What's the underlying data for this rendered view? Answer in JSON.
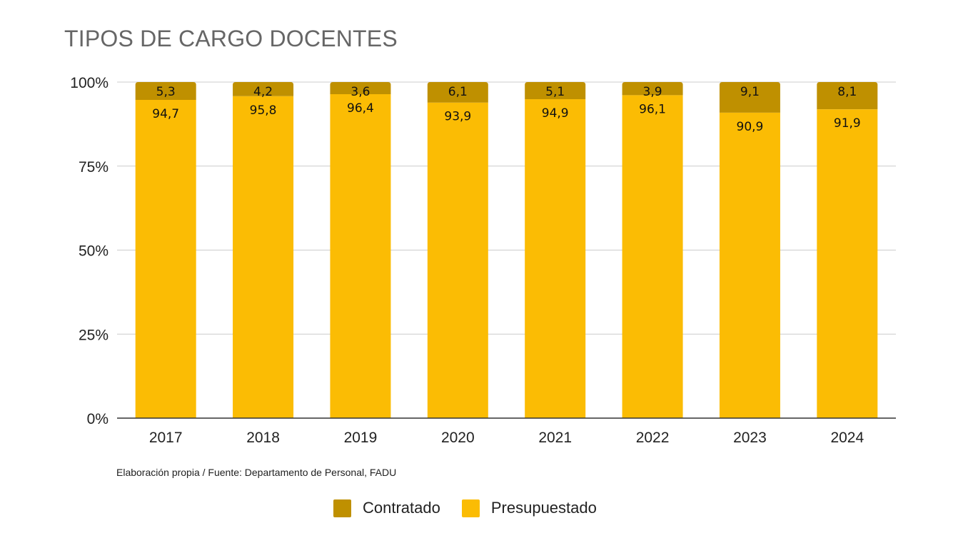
{
  "chart_data": {
    "type": "bar",
    "stacked": true,
    "title": "TIPOS DE CARGO DOCENTES",
    "categories": [
      "2017",
      "2018",
      "2019",
      "2020",
      "2021",
      "2022",
      "2023",
      "2024"
    ],
    "series": [
      {
        "name": "Presupuestado",
        "color": "#fbbc04",
        "values": [
          94.7,
          95.8,
          96.4,
          93.9,
          94.9,
          96.1,
          90.9,
          91.9
        ],
        "labels": [
          "94,7",
          "95,8",
          "96,4",
          "93,9",
          "94,9",
          "96,1",
          "90,9",
          "91,9"
        ]
      },
      {
        "name": "Contratado",
        "color": "#bf9000",
        "values": [
          5.3,
          4.2,
          3.6,
          6.1,
          5.1,
          3.9,
          9.1,
          8.1
        ],
        "labels": [
          "5,3",
          "4,2",
          "3,6",
          "6,1",
          "5,1",
          "3,9",
          "9,1",
          "8,1"
        ]
      }
    ],
    "yticks": [
      "0%",
      "25%",
      "50%",
      "75%",
      "100%"
    ],
    "ylim": [
      0,
      100
    ],
    "grid": true,
    "legend": "bottom"
  },
  "source_note": "Elaboración propia / Fuente: Departamento de Personal, FADU",
  "legend": {
    "items": [
      {
        "label": "Contratado",
        "color": "#bf9000"
      },
      {
        "label": "Presupuestado",
        "color": "#fbbc04"
      }
    ]
  }
}
